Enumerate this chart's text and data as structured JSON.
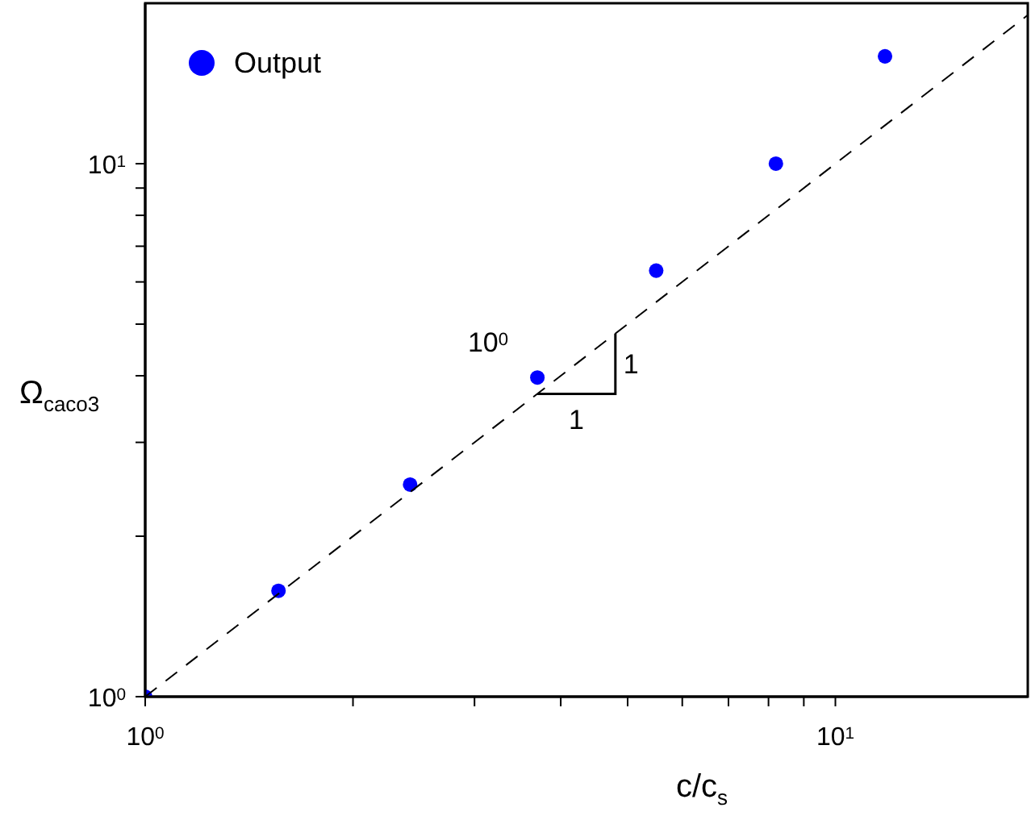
{
  "chart_data": {
    "type": "scatter",
    "xlabel": "c/c$_{s}$",
    "ylabel": "Ω$_{caco3}$",
    "x": [
      1,
      1.56,
      2.42,
      3.7,
      5.5,
      8.2,
      11.8
    ],
    "series": [
      {
        "name": "Output",
        "type": "scatter",
        "color": "#0000ff",
        "marker": "circle",
        "values": [
          1,
          1.58,
          2.5,
          3.97,
          6.3,
          10,
          15.9
        ]
      },
      {
        "type": "line",
        "color": "#000000",
        "line_style": "dashed",
        "marker": "none",
        "x": [
          1,
          19
        ],
        "values": [
          1,
          19
        ]
      }
    ],
    "log": "xy",
    "xlim": [
      1,
      19
    ],
    "ylim": [
      1,
      20
    ],
    "xticks": [
      {
        "value": 1,
        "label": "10$^{0}$"
      },
      {
        "value": 2,
        "label": null
      },
      {
        "value": 3,
        "label": null
      },
      {
        "value": 4,
        "label": null
      },
      {
        "value": 5,
        "label": null
      },
      {
        "value": 6,
        "label": null
      },
      {
        "value": 7,
        "label": null
      },
      {
        "value": 8,
        "label": null
      },
      {
        "value": 9,
        "label": null
      },
      {
        "value": 10,
        "label": "10$^{1}$"
      }
    ],
    "yticks": [
      {
        "value": 1,
        "label": "10$^{0}$"
      },
      {
        "value": 2,
        "label": null
      },
      {
        "value": 3,
        "label": null
      },
      {
        "value": 4,
        "label": null
      },
      {
        "value": 5,
        "label": null
      },
      {
        "value": 6,
        "label": null
      },
      {
        "value": 7,
        "label": null
      },
      {
        "value": 8,
        "label": null
      },
      {
        "value": 9,
        "label": null
      },
      {
        "value": 10,
        "label": "10$^{1}$"
      }
    ],
    "annotations": [
      "10$^{0}$",
      {
        "text": "1",
        "x": 4.8,
        "y": 4.8
      },
      {
        "text": "1",
        "x": 3.7,
        "y": 3.7
      }
    ],
    "legend": "top left",
    "grid": false
  }
}
